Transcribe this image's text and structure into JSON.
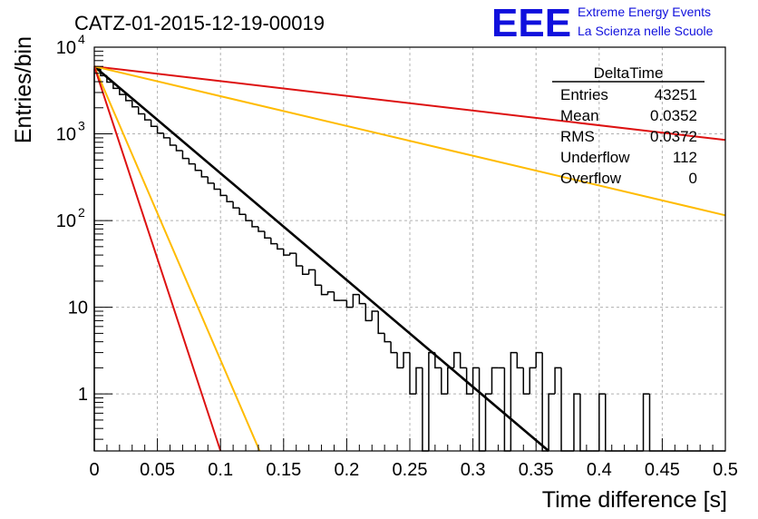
{
  "title": "CATZ-01-2015-12-19-00019",
  "logo": {
    "mark": "EEE",
    "line1": "Extreme Energy Events",
    "line2": "La Scienza nelle Scuole",
    "color": "#1010dd"
  },
  "stats": {
    "name": "DeltaTime",
    "rows": [
      {
        "label": "Entries",
        "value": "43251"
      },
      {
        "label": "Mean",
        "value": "0.0352"
      },
      {
        "label": "RMS",
        "value": "0.0372"
      },
      {
        "label": "Underflow",
        "value": "112"
      },
      {
        "label": "Overflow",
        "value": "0"
      }
    ]
  },
  "chart_data": {
    "type": "line",
    "xlabel": "Time difference [s]",
    "ylabel": "Entries/bin",
    "xlim": [
      0,
      0.5
    ],
    "ylim": [
      0.22,
      10000
    ],
    "log_y": true,
    "grid": true,
    "x_ticks": [
      "0",
      "0.05",
      "0.1",
      "0.15",
      "0.2",
      "0.25",
      "0.3",
      "0.35",
      "0.4",
      "0.45",
      "0.5"
    ],
    "y_ticks": [
      {
        "value": 1,
        "label": "1"
      },
      {
        "value": 10,
        "label": "10"
      },
      {
        "value": 100,
        "label": "10",
        "exp": "2"
      },
      {
        "value": 1000,
        "label": "10",
        "exp": "3"
      },
      {
        "value": 10000,
        "label": "10",
        "exp": "4"
      }
    ],
    "histogram": {
      "bin_width": 0.005,
      "color": "#000000",
      "counts": [
        5600,
        4700,
        3950,
        3350,
        2850,
        2420,
        2050,
        1700,
        1450,
        1220,
        1020,
        900,
        740,
        640,
        520,
        450,
        380,
        320,
        270,
        230,
        195,
        165,
        140,
        118,
        100,
        85,
        75,
        63,
        54,
        47,
        40,
        42,
        30,
        24,
        27,
        18,
        14,
        15,
        12,
        12,
        10,
        14,
        11,
        7,
        9,
        5,
        4,
        3,
        2,
        3,
        1,
        2,
        0.22,
        3,
        2,
        1,
        2,
        3,
        2,
        1,
        2,
        0.22,
        1,
        2,
        2,
        0.22,
        3,
        2,
        1,
        2,
        3,
        0.22,
        1,
        2,
        0.22,
        0.22,
        1,
        0.22,
        0.22,
        0.22,
        1,
        0.22,
        0.22,
        0.22,
        0.22,
        0.22,
        0.22,
        1,
        0.22,
        0.22,
        0.22,
        0.22,
        0.22,
        0.22,
        0.22,
        0.22,
        0.22,
        0.22,
        0.22,
        0.22
      ]
    },
    "fits": [
      {
        "color": "#000000",
        "points": [
          [
            0,
            6000
          ],
          [
            0.36,
            0.22
          ]
        ]
      },
      {
        "color": "#dd1111",
        "points": [
          [
            0,
            6000
          ],
          [
            0.5,
            850
          ]
        ]
      },
      {
        "color": "#ffbb00",
        "points": [
          [
            0,
            6000
          ],
          [
            0.5,
            115
          ]
        ]
      },
      {
        "color": "#ffbb00",
        "points": [
          [
            0,
            6000
          ],
          [
            0.131,
            0.22
          ]
        ]
      },
      {
        "color": "#dd1111",
        "points": [
          [
            0,
            6000
          ],
          [
            0.1,
            0.22
          ]
        ]
      }
    ]
  }
}
